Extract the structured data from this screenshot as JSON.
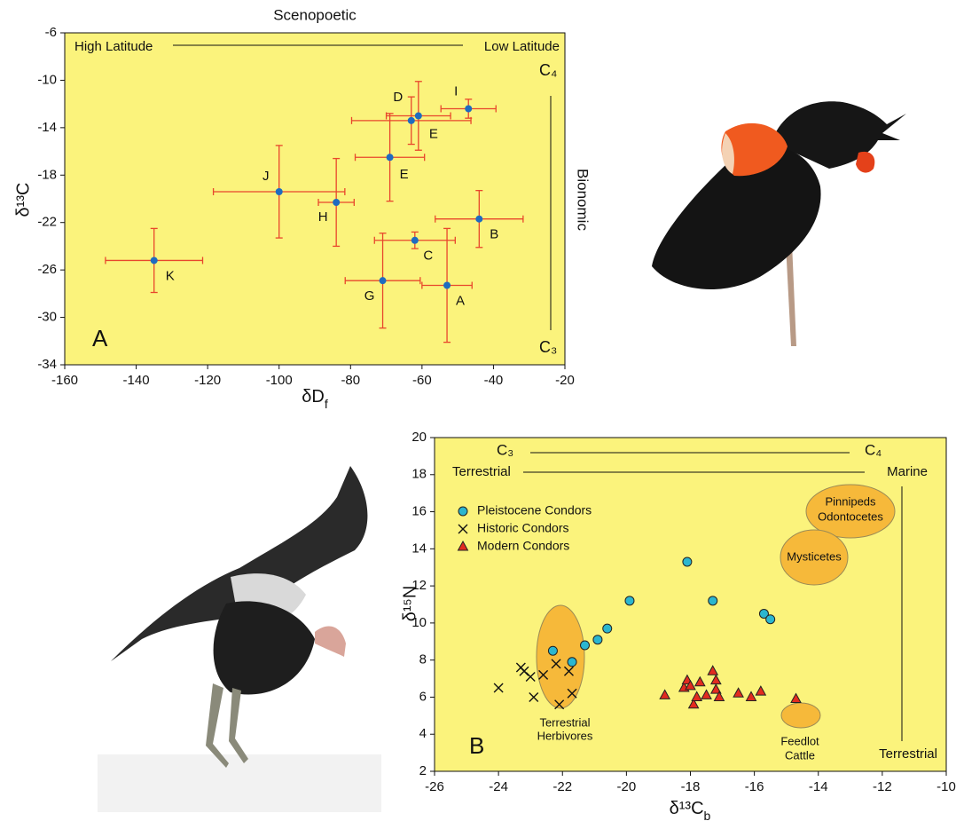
{
  "chart_data": [
    {
      "type": "scatter",
      "top_label": "Scenopoetic",
      "right_label": "Bionomic",
      "panel_label": "A",
      "xlabel": "δD",
      "xlabel_subscript": "f",
      "ylabel": "δ¹³C",
      "left_top": "High Latitude",
      "right_top": "Low Latitude",
      "upper_right": "C₄",
      "lower_right": "C₃",
      "xlim": [
        -160,
        -20
      ],
      "ylim": [
        -34,
        -6
      ],
      "xticks": [
        -160,
        -140,
        -120,
        -100,
        -80,
        -60,
        -40,
        -20
      ],
      "yticks": [
        -34,
        -30,
        -26,
        -22,
        -18,
        -14,
        -10,
        -6
      ],
      "background": "#fbf37c",
      "color": "#1f6cc0",
      "error_color": "#e8462c",
      "points": {
        "labels": [
          "K",
          "J",
          "H",
          "E",
          "D",
          "E",
          "I",
          "B",
          "C",
          "G",
          "A"
        ],
        "x": [
          -135,
          -100,
          -84,
          -69,
          -63,
          -61,
          -47,
          -44,
          -62,
          -71,
          -53
        ],
        "y": [
          -25.2,
          -19.4,
          -20.3,
          -16.5,
          -13.4,
          -13.0,
          -12.4,
          -21.7,
          -23.5,
          -26.9,
          -27.3
        ],
        "xerr": [
          13.6,
          18.4,
          5,
          9.7,
          16.7,
          9,
          7.7,
          12.3,
          11.3,
          10.5,
          7
        ],
        "yerr": [
          2.7,
          3.9,
          3.7,
          3.7,
          2,
          2.9,
          0.8,
          2.4,
          0.7,
          4,
          4.8
        ]
      }
    },
    {
      "type": "scatter",
      "panel_label": "B",
      "xlabel": "δ¹³C",
      "xlabel_subscript": "b",
      "ylabel": "δ¹⁵N",
      "left_top": "C₃",
      "right_top": "C₄",
      "left_second": "Terrestrial",
      "right_second": "Marine",
      "bottom_right": "Terrestrial",
      "regions": [
        [
          "Pinnipeds",
          "Odontocetes"
        ],
        [
          "Mysticetes"
        ],
        [
          "Terrestrial",
          "Herbivores"
        ],
        [
          "Feedlot",
          "Cattle"
        ]
      ],
      "region_color": "#f6b93a",
      "xlim": [
        -26,
        -10
      ],
      "ylim": [
        2,
        20
      ],
      "xticks": [
        -26,
        -24,
        -22,
        -20,
        -18,
        -16,
        -14,
        -12,
        -10
      ],
      "yticks": [
        2,
        4,
        6,
        8,
        10,
        12,
        14,
        16,
        18,
        20
      ],
      "background": "#fbf37c",
      "series": [
        {
          "name": "Pleistocene Condors",
          "marker": "circle",
          "color": "#2bb6cf",
          "x": [
            -22.3,
            -21.7,
            -21.3,
            -20.9,
            -20.6,
            -19.9,
            -18.1,
            -17.3,
            -15.7,
            -15.5
          ],
          "y": [
            8.5,
            7.9,
            8.8,
            9.1,
            9.7,
            11.2,
            13.3,
            11.2,
            10.5,
            10.2
          ]
        },
        {
          "name": "Historic Condors",
          "marker": "cross",
          "color": "#111111",
          "x": [
            -24.0,
            -23.3,
            -23.2,
            -23.0,
            -22.9,
            -22.6,
            -22.2,
            -22.1,
            -21.8,
            -21.7
          ],
          "y": [
            6.5,
            7.6,
            7.4,
            7.1,
            6.0,
            7.2,
            7.8,
            5.6,
            7.4,
            6.2
          ]
        },
        {
          "name": "Modern Condors",
          "marker": "triangle",
          "color": "#e22b1f",
          "x": [
            -18.8,
            -18.2,
            -18.1,
            -18.0,
            -17.9,
            -17.8,
            -17.7,
            -17.5,
            -17.3,
            -17.2,
            -17.2,
            -17.1,
            -16.5,
            -16.1,
            -15.8,
            -14.7
          ],
          "y": [
            6.1,
            6.5,
            6.9,
            6.6,
            5.6,
            6.0,
            6.8,
            6.1,
            7.4,
            6.9,
            6.4,
            6.0,
            6.2,
            6.0,
            6.3,
            5.9
          ]
        }
      ]
    }
  ]
}
